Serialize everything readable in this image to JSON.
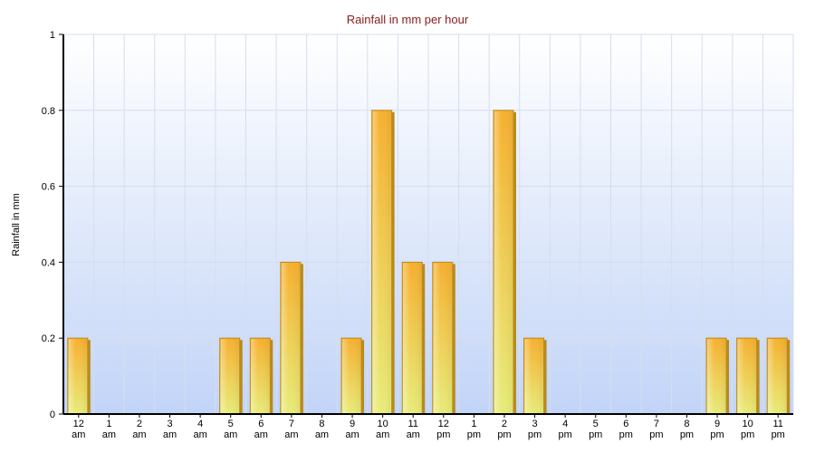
{
  "chart_data": {
    "type": "bar",
    "title": "Rainfall in mm per hour",
    "xlabel": "",
    "ylabel": "Rainfall in mm",
    "ylim": [
      0,
      1
    ],
    "yticks": [
      "0",
      "0.2",
      "0.4",
      "0.6",
      "0.8",
      "1"
    ],
    "grid": true,
    "categories": [
      "12 am",
      "1 am",
      "2 am",
      "3 am",
      "4 am",
      "5 am",
      "6 am",
      "7 am",
      "8 am",
      "9 am",
      "10 am",
      "11 am",
      "12 pm",
      "1 pm",
      "2 pm",
      "3 pm",
      "4 pm",
      "5 pm",
      "6 pm",
      "7 pm",
      "8 pm",
      "9 pm",
      "10 pm",
      "11 pm"
    ],
    "category_lines": [
      [
        "12",
        "am"
      ],
      [
        "1",
        "am"
      ],
      [
        "2",
        "am"
      ],
      [
        "3",
        "am"
      ],
      [
        "4",
        "am"
      ],
      [
        "5",
        "am"
      ],
      [
        "6",
        "am"
      ],
      [
        "7",
        "am"
      ],
      [
        "8",
        "am"
      ],
      [
        "9",
        "am"
      ],
      [
        "10",
        "am"
      ],
      [
        "11",
        "am"
      ],
      [
        "12",
        "pm"
      ],
      [
        "1",
        "pm"
      ],
      [
        "2",
        "pm"
      ],
      [
        "3",
        "pm"
      ],
      [
        "4",
        "pm"
      ],
      [
        "5",
        "pm"
      ],
      [
        "6",
        "pm"
      ],
      [
        "7",
        "pm"
      ],
      [
        "8",
        "pm"
      ],
      [
        "9",
        "pm"
      ],
      [
        "10",
        "pm"
      ],
      [
        "11",
        "pm"
      ]
    ],
    "values": [
      0.2,
      0,
      0,
      0,
      0,
      0.2,
      0.2,
      0.4,
      0,
      0.2,
      0.8,
      0.4,
      0.4,
      0,
      0.8,
      0.2,
      0,
      0,
      0,
      0,
      0,
      0.2,
      0.2,
      0.2
    ],
    "colors": {
      "bar_top": "#f6b030",
      "bar_bottom": "#e8ec7a",
      "bar_side": "#b98a1c",
      "title": "#8b1a1a",
      "plot_top": "#ffffff",
      "plot_bottom": "#c2d4f7"
    }
  }
}
